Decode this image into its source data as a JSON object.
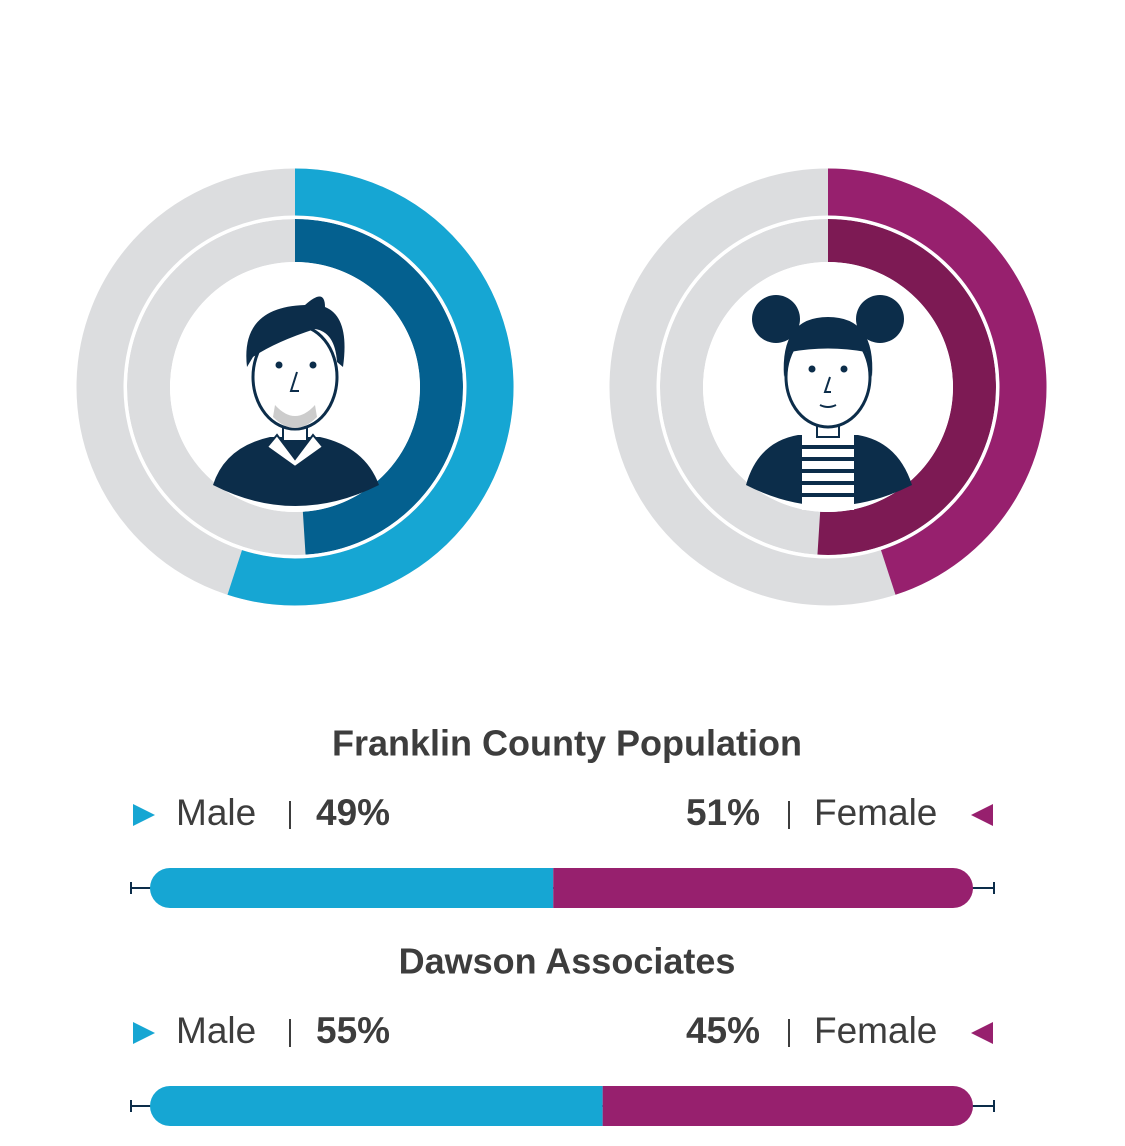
{
  "chart_data": [
    {
      "type": "stacked-bar",
      "title": "Franklin County Population",
      "xlim": [
        0,
        100
      ],
      "series": [
        {
          "name": "Male",
          "color": "#16a6d3",
          "donut_color": "#04608f",
          "values": [
            49
          ],
          "value_labels": [
            "49%"
          ]
        },
        {
          "name": "Female",
          "color": "#97206e",
          "donut_color": "#7d1a54",
          "values": [
            51
          ],
          "value_labels": [
            "51%"
          ]
        }
      ]
    },
    {
      "type": "stacked-bar",
      "title": "Dawson Associates",
      "xlim": [
        0,
        100
      ],
      "series": [
        {
          "name": "Male",
          "color": "#16a6d3",
          "donut_color": "#16a6d3",
          "values": [
            55
          ],
          "value_labels": [
            "55%"
          ]
        },
        {
          "name": "Female",
          "color": "#97206e",
          "donut_color": "#97206e",
          "values": [
            45
          ],
          "value_labels": [
            "45%"
          ]
        }
      ]
    }
  ]
}
